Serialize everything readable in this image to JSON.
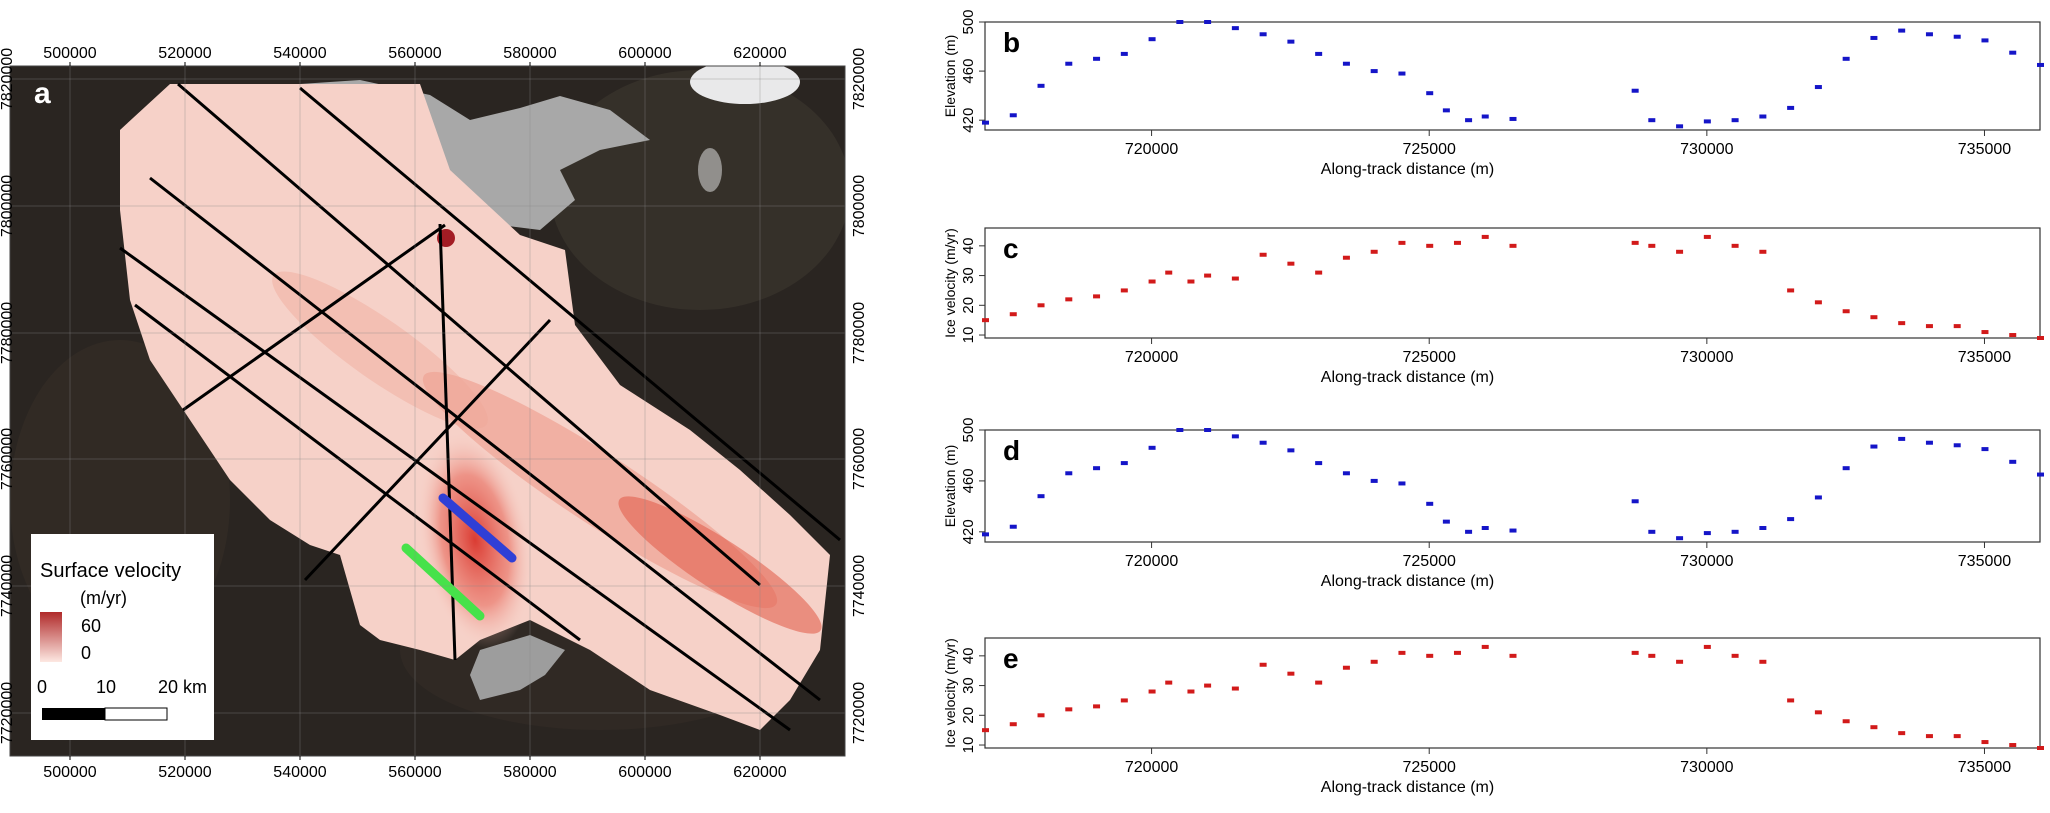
{
  "map_panel": {
    "label": "a",
    "x_ticks": [
      "500000",
      "520000",
      "540000",
      "560000",
      "580000",
      "600000",
      "620000"
    ],
    "y_ticks": [
      "7820000",
      "7800000",
      "7780000",
      "7760000",
      "7740000",
      "7720000"
    ],
    "legend": {
      "title": "Surface velocity",
      "unit": "(m/yr)",
      "max_label": "60",
      "min_label": "0",
      "color_max": "#b02a2a",
      "color_min": "#fde8e2"
    },
    "scalebar": {
      "labels": [
        "0",
        "10",
        "20 km"
      ]
    },
    "colors": {
      "background_dark": "#2a2521",
      "ice_light": "#f6d1c8",
      "ice_fast": "#d9342b",
      "lake_grey": "#a8a8a8",
      "track_blue": "#2f3fd6",
      "track_green": "#46e24a"
    }
  },
  "chart_data": [
    {
      "type": "scatter",
      "panel": "b",
      "xlabel": "Along-track distance (m)",
      "ylabel": "Elevation (m)",
      "color": "#1515c8",
      "xlim": [
        717000,
        736000
      ],
      "ylim": [
        412,
        500
      ],
      "x_ticks": [
        "720000",
        "725000",
        "730000",
        "735000"
      ],
      "y_ticks": [
        "420",
        "460",
        "500"
      ],
      "x": [
        717000,
        717500,
        718000,
        718500,
        719000,
        719500,
        720000,
        720500,
        721000,
        721500,
        722000,
        722500,
        723000,
        723500,
        724000,
        724500,
        725000,
        725300,
        725700,
        726000,
        726500,
        728700,
        729000,
        729500,
        730000,
        730500,
        731000,
        731500,
        732000,
        732500,
        733000,
        733500,
        734000,
        734500,
        735000,
        735500,
        736000
      ],
      "values": [
        418,
        424,
        448,
        466,
        470,
        474,
        486,
        500,
        500,
        495,
        490,
        484,
        474,
        466,
        460,
        458,
        442,
        428,
        420,
        423,
        421,
        444,
        420,
        415,
        419,
        420,
        423,
        430,
        447,
        470,
        487,
        493,
        490,
        488,
        485,
        475,
        465
      ]
    },
    {
      "type": "scatter",
      "panel": "c",
      "xlabel": "Along-track distance (m)",
      "ylabel": "Ice velocity (m/yr)",
      "color": "#d21a1a",
      "xlim": [
        717000,
        736000
      ],
      "ylim": [
        9,
        46
      ],
      "x_ticks": [
        "720000",
        "725000",
        "730000",
        "735000"
      ],
      "y_ticks": [
        "10",
        "20",
        "30",
        "40"
      ],
      "x": [
        717000,
        717500,
        718000,
        718500,
        719000,
        719500,
        720000,
        720300,
        720700,
        721000,
        721500,
        722000,
        722500,
        723000,
        723500,
        724000,
        724500,
        725000,
        725500,
        726000,
        726500,
        728700,
        729000,
        729500,
        730000,
        730500,
        731000,
        731500,
        732000,
        732500,
        733000,
        733500,
        734000,
        734500,
        735000,
        735500,
        736000
      ],
      "values": [
        15,
        17,
        20,
        22,
        23,
        25,
        28,
        31,
        28,
        30,
        29,
        37,
        34,
        31,
        36,
        38,
        41,
        40,
        41,
        43,
        40,
        41,
        40,
        38,
        43,
        40,
        38,
        25,
        21,
        18,
        16,
        14,
        13,
        13,
        11,
        10,
        9
      ]
    },
    {
      "type": "scatter",
      "panel": "d",
      "xlabel": "Along-track distance (m)",
      "ylabel": "Elevation (m)",
      "color": "#1515c8",
      "xlim": [
        717000,
        736000
      ],
      "ylim": [
        412,
        500
      ],
      "x_ticks": [
        "720000",
        "725000",
        "730000",
        "735000"
      ],
      "y_ticks": [
        "420",
        "460",
        "500"
      ],
      "x": [
        717000,
        717500,
        718000,
        718500,
        719000,
        719500,
        720000,
        720500,
        721000,
        721500,
        722000,
        722500,
        723000,
        723500,
        724000,
        724500,
        725000,
        725300,
        725700,
        726000,
        726500,
        728700,
        729000,
        729500,
        730000,
        730500,
        731000,
        731500,
        732000,
        732500,
        733000,
        733500,
        734000,
        734500,
        735000,
        735500,
        736000
      ],
      "values": [
        418,
        424,
        448,
        466,
        470,
        474,
        486,
        500,
        500,
        495,
        490,
        484,
        474,
        466,
        460,
        458,
        442,
        428,
        420,
        423,
        421,
        444,
        420,
        415,
        419,
        420,
        423,
        430,
        447,
        470,
        487,
        493,
        490,
        488,
        485,
        475,
        465
      ]
    },
    {
      "type": "scatter",
      "panel": "e",
      "xlabel": "Along-track distance (m)",
      "ylabel": "Ice velocity (m/yr)",
      "color": "#d21a1a",
      "xlim": [
        717000,
        736000
      ],
      "ylim": [
        9,
        46
      ],
      "x_ticks": [
        "720000",
        "725000",
        "730000",
        "735000"
      ],
      "y_ticks": [
        "10",
        "20",
        "30",
        "40"
      ],
      "x": [
        717000,
        717500,
        718000,
        718500,
        719000,
        719500,
        720000,
        720300,
        720700,
        721000,
        721500,
        722000,
        722500,
        723000,
        723500,
        724000,
        724500,
        725000,
        725500,
        726000,
        726500,
        728700,
        729000,
        729500,
        730000,
        730500,
        731000,
        731500,
        732000,
        732500,
        733000,
        733500,
        734000,
        734500,
        735000,
        735500,
        736000
      ],
      "values": [
        15,
        17,
        20,
        22,
        23,
        25,
        28,
        31,
        28,
        30,
        29,
        37,
        34,
        31,
        36,
        38,
        41,
        40,
        41,
        43,
        40,
        41,
        40,
        38,
        43,
        40,
        38,
        25,
        21,
        18,
        16,
        14,
        13,
        13,
        11,
        10,
        9
      ]
    }
  ]
}
